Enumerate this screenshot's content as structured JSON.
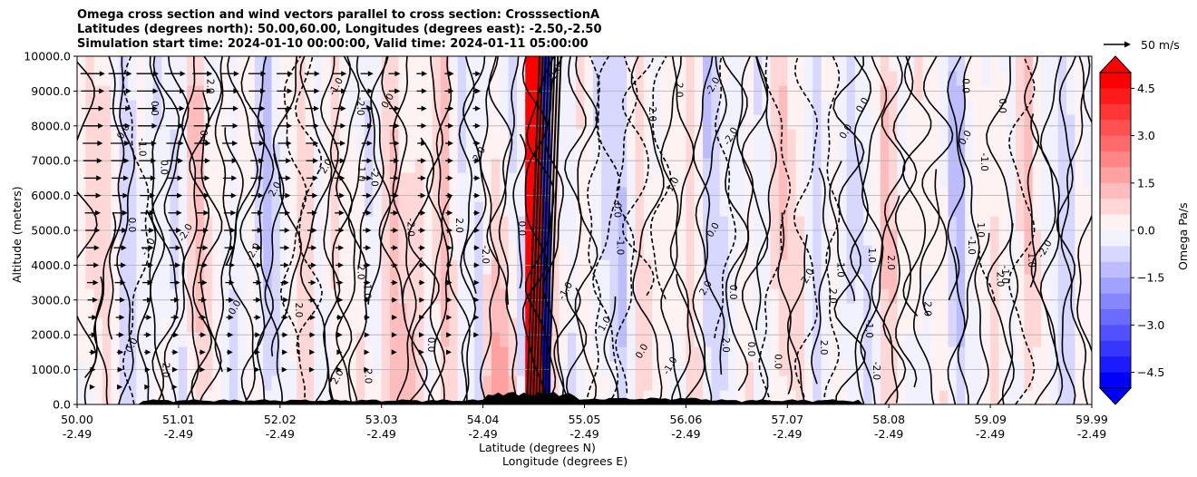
{
  "title_lines": [
    "Omega cross section and wind vectors parallel to cross section: CrosssectionA",
    "Latitudes (degrees north): 50.00,60.00, Longitudes (degrees east): -2.50,-2.50",
    "Simulation start time: 2024-01-10 00:00:00, Valid time: 2024-01-11 05:00:00"
  ],
  "chart_data": {
    "type": "heatmap",
    "title": "Omega cross section and wind vectors parallel to cross section: CrosssectionA",
    "ylabel": "Altitude (meters)",
    "xlabel_lines": [
      "Latitude (degrees N)",
      "Longitude (degrees E)"
    ],
    "xlim": [
      50.0,
      59.99
    ],
    "ylim": [
      0,
      10000
    ],
    "grid": "horizontal",
    "y_ticks": [
      "0.0",
      "1000.0",
      "2000.0",
      "3000.0",
      "4000.0",
      "5000.0",
      "6000.0",
      "7000.0",
      "8000.0",
      "9000.0",
      "10000.0"
    ],
    "x_ticks": [
      {
        "lat": "50.00",
        "lon": "-2.49"
      },
      {
        "lat": "51.01",
        "lon": "-2.49"
      },
      {
        "lat": "52.02",
        "lon": "-2.49"
      },
      {
        "lat": "53.03",
        "lon": "-2.49"
      },
      {
        "lat": "54.04",
        "lon": "-2.49"
      },
      {
        "lat": "55.05",
        "lon": "-2.49"
      },
      {
        "lat": "56.06",
        "lon": "-2.49"
      },
      {
        "lat": "57.07",
        "lon": "-2.49"
      },
      {
        "lat": "58.08",
        "lon": "-2.49"
      },
      {
        "lat": "59.09",
        "lon": "-2.49"
      },
      {
        "lat": "59.99",
        "lon": "-2.49"
      }
    ],
    "colorbar": {
      "label": "Omega Pa/s",
      "min": -5.0,
      "max": 5.0,
      "extend": "both",
      "ticks": [
        "4.5",
        "3.0",
        "1.5",
        "0.0",
        "−1.5",
        "−3.0",
        "−4.5"
      ],
      "low_color": "#0000ff",
      "mid_color": "#ffffff",
      "high_color": "#ff0000"
    },
    "contour_labels": [
      "0.0",
      "1.0",
      "2.0",
      "-1.0",
      "-2.0"
    ],
    "vector_key": {
      "label": "50 m/s"
    },
    "colors": {
      "contour": "#000000",
      "terrain": "#000000",
      "grid": "#b0b0b0"
    }
  }
}
